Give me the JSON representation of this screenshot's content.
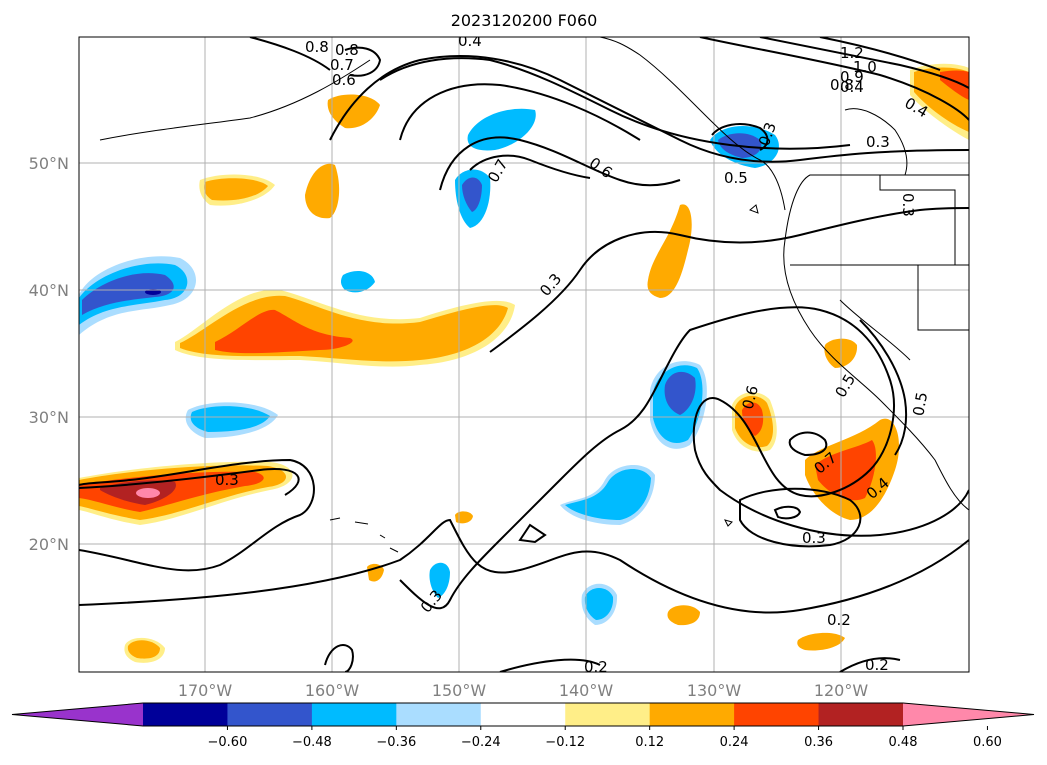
{
  "title": "2023120200 F060",
  "lat_labels": [
    "50°N",
    "40°N",
    "30°N",
    "20°N"
  ],
  "lon_labels": [
    "170°W",
    "160°W",
    "150°W",
    "140°W",
    "130°W",
    "120°W"
  ],
  "colorbar": {
    "ticks": [
      "−0.60",
      "−0.48",
      "−0.36",
      "−0.24",
      "−0.12",
      "0.12",
      "0.24",
      "0.36",
      "0.48",
      "0.60"
    ],
    "colors": [
      "#9933cc",
      "#000099",
      "#3355cc",
      "#00bbff",
      "#aaddff",
      "#ffffff",
      "#ffee88",
      "#ffaa00",
      "#ff4400",
      "#b22222",
      "#ff88aa"
    ]
  },
  "contour_labels": [
    "1.2",
    "1.0",
    "0.8",
    "0.7",
    "0.6",
    "0.4",
    "0.7",
    "0.6",
    "0.5",
    "0.3",
    "0.3",
    "0.3",
    "0.5",
    "0.4",
    "0.3",
    "0.6",
    "0.7",
    "0.4",
    "0.3",
    "0.3",
    "0.5",
    "0.2",
    "0.2",
    "0.2",
    "0.3",
    "0.4",
    "0.8",
    "0.9",
    "0.8"
  ]
}
